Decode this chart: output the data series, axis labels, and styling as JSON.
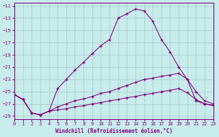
{
  "xlabel": "Windchill (Refroidissement éolien,°C)",
  "background_color": "#c8ecec",
  "grid_color": "#a0c8c8",
  "line_color": "#800080",
  "xlim": [
    0,
    23
  ],
  "ylim": [
    -29.5,
    -10.5
  ],
  "yticks": [
    -29,
    -27,
    -25,
    -23,
    -21,
    -19,
    -17,
    -15,
    -13,
    -11
  ],
  "xticks": [
    0,
    1,
    2,
    3,
    4,
    5,
    6,
    7,
    8,
    9,
    10,
    11,
    12,
    13,
    14,
    15,
    16,
    17,
    18,
    19,
    20,
    21,
    22,
    23
  ],
  "line1_x": [
    0,
    1,
    2,
    3,
    4,
    5,
    6,
    7,
    8,
    9,
    10,
    11,
    12,
    13,
    14,
    15,
    16,
    17,
    18,
    19,
    20,
    21,
    22,
    23
  ],
  "line1_y": [
    -25.5,
    -26.3,
    -28.5,
    -28.8,
    -28.2,
    -24.5,
    -23.0,
    -21.5,
    -20.2,
    -18.8,
    -17.5,
    -16.5,
    -13.0,
    -12.3,
    -11.5,
    -11.8,
    -13.5,
    -16.5,
    -18.5,
    -21.0,
    -23.0,
    -26.5,
    -27.0,
    -27.2
  ],
  "line2_x": [
    0,
    1,
    2,
    3,
    4,
    5,
    6,
    7,
    8,
    9,
    10,
    11,
    12,
    13,
    14,
    15,
    16,
    17,
    18,
    19,
    20,
    21,
    22,
    23
  ],
  "line2_y": [
    -25.5,
    -26.3,
    -28.5,
    -28.8,
    -28.2,
    -27.5,
    -27.0,
    -26.5,
    -26.2,
    -25.8,
    -25.3,
    -25.0,
    -24.5,
    -24.0,
    -23.5,
    -23.0,
    -22.8,
    -22.5,
    -22.3,
    -22.0,
    -23.0,
    -25.0,
    -26.5,
    -27.0
  ],
  "line3_x": [
    0,
    1,
    2,
    3,
    4,
    5,
    6,
    7,
    8,
    9,
    10,
    11,
    12,
    13,
    14,
    15,
    16,
    17,
    18,
    19,
    20,
    21,
    22,
    23
  ],
  "line3_y": [
    -25.5,
    -26.3,
    -28.5,
    -28.8,
    -28.2,
    -28.0,
    -27.8,
    -27.5,
    -27.3,
    -27.0,
    -26.8,
    -26.5,
    -26.3,
    -26.0,
    -25.8,
    -25.5,
    -25.3,
    -25.0,
    -24.8,
    -24.5,
    -25.2,
    -26.3,
    -27.0,
    -27.3
  ]
}
